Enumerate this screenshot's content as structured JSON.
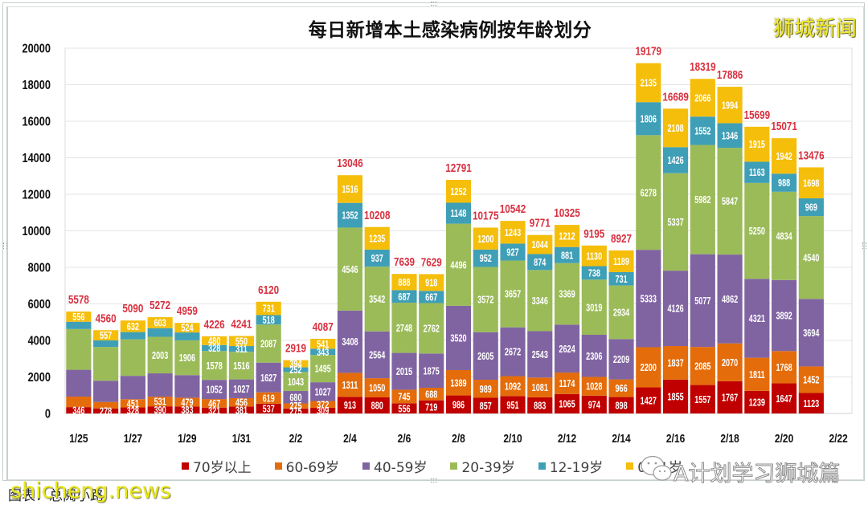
{
  "chart_data": {
    "type": "bar",
    "stacked": true,
    "title": "每日新增本土感染病例按年龄划分",
    "xlabel": "",
    "ylabel": "",
    "ylim": [
      0,
      20000
    ],
    "yticks": [
      0,
      2000,
      4000,
      6000,
      8000,
      10000,
      12000,
      14000,
      16000,
      18000,
      20000
    ],
    "x_range": [
      "1/25",
      "2/22"
    ],
    "x_tick_labels": [
      "1/25",
      "1/27",
      "1/29",
      "1/31",
      "2/2",
      "2/4",
      "2/6",
      "2/8",
      "2/10",
      "2/12",
      "2/14",
      "2/16",
      "2/18",
      "2/20",
      "2/22"
    ],
    "categories": [
      "1/25",
      "1/26",
      "1/27",
      "1/28",
      "1/29",
      "1/30",
      "1/31",
      "2/1",
      "2/2",
      "2/3",
      "2/4",
      "2/5",
      "2/6",
      "2/7",
      "2/8",
      "2/9",
      "2/10",
      "2/11",
      "2/12",
      "2/13",
      "2/14",
      "2/15",
      "2/16",
      "2/17",
      "2/18",
      "2/19",
      "2/20",
      "2/21"
    ],
    "grid": true,
    "legend_position": "bottom",
    "total_label_color": "#D8303F",
    "totals": [
      5578,
      4560,
      5090,
      5272,
      4959,
      4226,
      4241,
      6120,
      2919,
      4087,
      13046,
      10208,
      7639,
      7629,
      12791,
      10175,
      10542,
      9771,
      10325,
      9195,
      8927,
      19179,
      16689,
      18319,
      17886,
      15699,
      15071,
      13476
    ],
    "series": [
      {
        "name": "70岁以上",
        "color": "#C00000",
        "values": [
          346,
          278,
          328,
          390,
          383,
          321,
          381,
          537,
          275,
          309,
          913,
          880,
          556,
          719,
          986,
          857,
          951,
          883,
          1065,
          974,
          898,
          1427,
          1855,
          1557,
          1767,
          1239,
          1647,
          1123
        ],
        "label_hidden": []
      },
      {
        "name": "60-69岁",
        "color": "#E46C0A",
        "values": [
          576,
          350,
          451,
          531,
          479,
          467,
          456,
          619,
          275,
          372,
          1311,
          1050,
          745,
          688,
          1389,
          989,
          1092,
          1081,
          1174,
          1028,
          966,
          2200,
          1837,
          2085,
          2070,
          1811,
          1768,
          1452
        ],
        "label_hidden": [
          "1/25",
          "1/26"
        ]
      },
      {
        "name": "40-59岁",
        "color": "#8064A2",
        "values": [
          1470,
          1165,
          1280,
          1275,
          1237,
          1052,
          1027,
          1627,
          680,
          1027,
          3408,
          2564,
          2015,
          1875,
          3520,
          2605,
          2672,
          2543,
          2624,
          2306,
          2209,
          5333,
          4126,
          5077,
          4862,
          4321,
          3892,
          3694
        ],
        "label_hidden": [
          "1/25",
          "1/26",
          "1/27",
          "1/28",
          "1/29"
        ]
      },
      {
        "name": "20-39岁",
        "color": "#9BBB59",
        "values": [
          2230,
          1850,
          1999,
          2003,
          1906,
          1578,
          1516,
          2087,
          1043,
          1495,
          4546,
          3542,
          2748,
          2762,
          4496,
          3572,
          3657,
          3346,
          3369,
          3019,
          2934,
          6278,
          5337,
          5982,
          5847,
          5250,
          4834,
          4540
        ],
        "label_hidden": [
          "1/25",
          "1/26",
          "1/27"
        ]
      },
      {
        "name": "12-19岁",
        "color": "#3F9FB7",
        "values": [
          400,
          360,
          400,
          470,
          430,
          328,
          311,
          518,
          252,
          343,
          1352,
          937,
          687,
          667,
          1148,
          952,
          927,
          874,
          881,
          738,
          731,
          1806,
          1426,
          1552,
          1346,
          1163,
          988,
          969
        ],
        "label_hidden": [
          "1/25",
          "1/26",
          "1/27",
          "1/28",
          "1/29"
        ]
      },
      {
        "name": "0-11岁",
        "color": "#F5BE0B",
        "values": [
          556,
          557,
          632,
          603,
          524,
          480,
          550,
          731,
          394,
          541,
          1516,
          1235,
          888,
          918,
          1252,
          1200,
          1243,
          1044,
          1212,
          1130,
          1189,
          2135,
          2108,
          2066,
          1994,
          1915,
          1942,
          1698
        ],
        "label_hidden": []
      }
    ]
  },
  "watermarks": {
    "top_right": "狮城新闻",
    "bottom_right": "A计划学习狮城篇",
    "bottom_left": "shicheng.news"
  },
  "caption": "图表：总阅小路"
}
